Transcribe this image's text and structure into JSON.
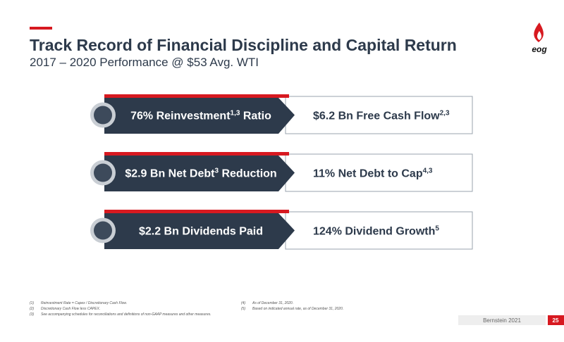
{
  "header": {
    "title": "Track Record of Financial Discipline and Capital Return",
    "subtitle": "2017 – 2020 Performance @ $53 Avg. WTI"
  },
  "logo": "eog",
  "rows": [
    {
      "left": [
        "76% Reinvestment",
        "1,3",
        " Ratio"
      ],
      "right": [
        "$6.2 Bn Free Cash Flow",
        "2,3"
      ]
    },
    {
      "left": [
        "$2.9 Bn Net Debt",
        "3",
        " Reduction"
      ],
      "right": [
        "11% Net Debt to Cap",
        "4,3"
      ]
    },
    {
      "left": [
        "$2.2 Bn Dividends Paid"
      ],
      "right": [
        "124% Dividend Growth",
        "5"
      ]
    }
  ],
  "footnotes": [
    {
      "n": "(1)",
      "t": "Reinvestment Rate = Capex / Discretionary Cash Flow."
    },
    {
      "n": "(2)",
      "t": "Discretionary Cash Flow less CAPEX."
    },
    {
      "n": "(3)",
      "t": "See accompanying schedules for reconciliations and definitions of non-GAAP measures and other measures."
    },
    {
      "n": "(4)",
      "t": "As of December 31, 2020."
    },
    {
      "n": "(5)",
      "t": "Based on indicated annual rate, as of December 31, 2020."
    }
  ],
  "footer": {
    "event": "Bernstein 2021",
    "page": "25"
  }
}
